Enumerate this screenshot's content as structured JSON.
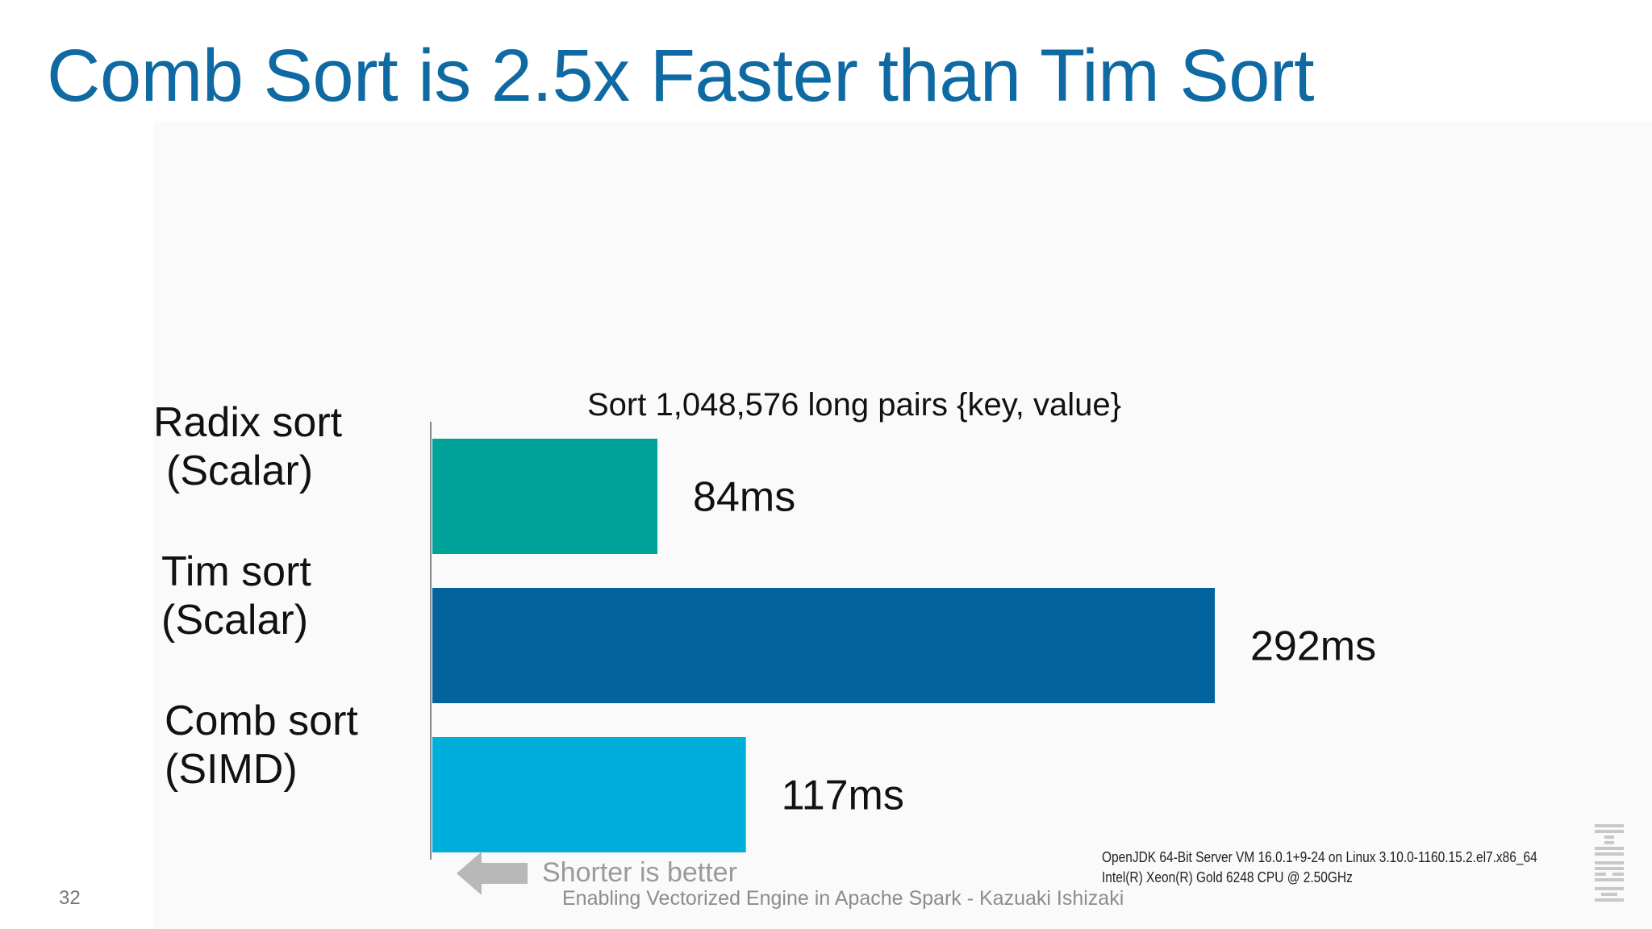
{
  "slide": {
    "title": "Comb Sort is 2.5x Faster than Tim Sort",
    "page_number": "32",
    "footer": "Enabling Vectorized Engine in Apache Spark - Kazuaki Ishizaki",
    "shorter_is_better": "Shorter is better",
    "env_lines": [
      "OpenJDK 64-Bit Server VM 16.0.1+9-24 on Linux 3.10.0-1160.15.2.el7.x86_64",
      "Intel(R) Xeon(R) Gold 6248 CPU @ 2.50GHz"
    ],
    "logo_name": "IBM"
  },
  "chart_data": {
    "type": "bar",
    "orientation": "horizontal",
    "title": "Sort 1,048,576 long pairs {key, value}",
    "categories": [
      [
        "Radix sort",
        "(Scalar)"
      ],
      [
        "Tim sort",
        "(Scalar)"
      ],
      [
        "Comb sort",
        "(SIMD)"
      ]
    ],
    "values": [
      84,
      292,
      117
    ],
    "unit": "ms",
    "data_labels": [
      "84ms",
      "292ms",
      "117ms"
    ],
    "colors": [
      "#00a39a",
      "#03649d",
      "#00aedb"
    ],
    "xlabel": "",
    "ylabel": "",
    "xlim": [
      0,
      292
    ],
    "grid": false,
    "legend": "none"
  }
}
